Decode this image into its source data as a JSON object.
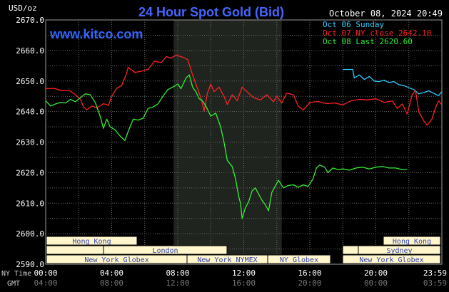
{
  "header": {
    "title": "24 Hour Spot Gold (Bid)",
    "date": "October 08, 2024 20:49",
    "brand": "www.kitco.com",
    "unit": "USD/oz"
  },
  "legend": [
    {
      "label": "Oct 06 Sunday",
      "color": "#33CCFF"
    },
    {
      "label": "Oct 07 NY close 2642.10",
      "color": "#FF2222"
    },
    {
      "label": "Oct 08 Last 2620.60",
      "color": "#33EE33"
    }
  ],
  "axis": {
    "x_row1_label": "NY Time",
    "x_row2_label": "GMT",
    "x_ticks_ny": [
      "00:00",
      "04:00",
      "08:00",
      "12:00",
      "16:00",
      "20:00",
      "23:59"
    ],
    "x_ticks_gmt": [
      "04:00",
      "08:00",
      "12:00",
      "16:00",
      "20:00",
      "00:00",
      "03:59"
    ],
    "y_ticks": [
      "2670.0",
      "2660.0",
      "2650.0",
      "2640.0",
      "2630.0",
      "2620.0",
      "2610.0",
      "2600.0",
      "2590.0"
    ]
  },
  "sessions": {
    "row1": [
      "Hong Kong",
      "Hong Kong"
    ],
    "row2": [
      "London",
      "Sydney"
    ],
    "row3": [
      "New York Globex",
      "New York NYMEX",
      "NY Globex",
      "New York Globex"
    ]
  },
  "chart_data": {
    "type": "line",
    "title": "24 Hour Spot Gold (Bid)",
    "ylabel": "USD/oz",
    "ylim": [
      2590,
      2670
    ],
    "xlim_hours": [
      0,
      24
    ],
    "grid": true,
    "colors": {
      "oct06": "#33CCFF",
      "oct07": "#FF2222",
      "oct08": "#33EE33"
    },
    "shaded_range_hours": [
      7.75,
      14.3
    ],
    "series": [
      {
        "name": "Oct 06 Sunday",
        "points": [
          [
            18.0,
            2653.8
          ],
          [
            18.6,
            2653.8
          ],
          [
            18.7,
            2651.0
          ],
          [
            19.0,
            2652.0
          ],
          [
            19.3,
            2650.5
          ],
          [
            19.6,
            2651.5
          ],
          [
            19.9,
            2650.0
          ],
          [
            20.2,
            2649.8
          ],
          [
            20.5,
            2650.3
          ],
          [
            20.8,
            2649.5
          ],
          [
            21.1,
            2649.8
          ],
          [
            21.4,
            2648.8
          ],
          [
            21.7,
            2648.5
          ],
          [
            22.0,
            2647.8
          ],
          [
            22.3,
            2647.2
          ],
          [
            22.6,
            2645.8
          ],
          [
            22.9,
            2646.2
          ],
          [
            23.2,
            2646.8
          ],
          [
            23.5,
            2646.0
          ],
          [
            23.8,
            2645.2
          ],
          [
            23.99,
            2646.5
          ]
        ]
      },
      {
        "name": "Oct 07 NY close 2642.10",
        "points": [
          [
            0.0,
            2647.5
          ],
          [
            0.5,
            2647.6
          ],
          [
            1.0,
            2646.8
          ],
          [
            1.4,
            2647.0
          ],
          [
            1.8,
            2645.5
          ],
          [
            2.1,
            2644.0
          ],
          [
            2.3,
            2641.5
          ],
          [
            2.5,
            2640.6
          ],
          [
            2.8,
            2641.8
          ],
          [
            3.1,
            2641.2
          ],
          [
            3.5,
            2642.6
          ],
          [
            3.8,
            2642.0
          ],
          [
            4.0,
            2645.0
          ],
          [
            4.3,
            2647.6
          ],
          [
            4.6,
            2648.5
          ],
          [
            4.9,
            2652.5
          ],
          [
            5.0,
            2654.5
          ],
          [
            5.4,
            2652.8
          ],
          [
            5.8,
            2653.2
          ],
          [
            6.2,
            2653.8
          ],
          [
            6.6,
            2656.5
          ],
          [
            7.0,
            2656.0
          ],
          [
            7.3,
            2658.0
          ],
          [
            7.6,
            2657.5
          ],
          [
            7.9,
            2658.5
          ],
          [
            8.3,
            2657.8
          ],
          [
            8.6,
            2657.0
          ],
          [
            8.9,
            2652.0
          ],
          [
            9.2,
            2647.5
          ],
          [
            9.4,
            2644.5
          ],
          [
            9.6,
            2640.2
          ],
          [
            9.8,
            2646.0
          ],
          [
            10.0,
            2649.0
          ],
          [
            10.2,
            2646.5
          ],
          [
            10.5,
            2648.0
          ],
          [
            10.8,
            2645.0
          ],
          [
            11.0,
            2642.3
          ],
          [
            11.3,
            2645.5
          ],
          [
            11.6,
            2643.5
          ],
          [
            11.9,
            2648.0
          ],
          [
            12.2,
            2646.5
          ],
          [
            12.6,
            2644.5
          ],
          [
            13.0,
            2643.8
          ],
          [
            13.4,
            2645.5
          ],
          [
            13.8,
            2643.2
          ],
          [
            14.0,
            2645.0
          ],
          [
            14.3,
            2642.8
          ],
          [
            14.6,
            2646.0
          ],
          [
            15.0,
            2645.5
          ],
          [
            15.3,
            2641.8
          ],
          [
            15.6,
            2640.5
          ],
          [
            16.0,
            2643.0
          ],
          [
            16.5,
            2643.3
          ],
          [
            17.0,
            2642.6
          ],
          [
            17.5,
            2642.8
          ],
          [
            18.0,
            2642.2
          ],
          [
            18.5,
            2643.5
          ],
          [
            19.0,
            2644.0
          ],
          [
            19.5,
            2643.8
          ],
          [
            20.0,
            2644.2
          ],
          [
            20.5,
            2643.0
          ],
          [
            21.0,
            2643.5
          ],
          [
            21.3,
            2641.0
          ],
          [
            21.6,
            2642.5
          ],
          [
            21.9,
            2639.2
          ],
          [
            22.2,
            2645.5
          ],
          [
            22.4,
            2647.0
          ],
          [
            22.6,
            2640.0
          ],
          [
            22.9,
            2637.0
          ],
          [
            23.1,
            2635.5
          ],
          [
            23.4,
            2637.5
          ],
          [
            23.6,
            2641.0
          ],
          [
            23.8,
            2643.5
          ],
          [
            23.99,
            2642.3
          ]
        ]
      },
      {
        "name": "Oct 08 Last 2620.60",
        "points": [
          [
            0.0,
            2643.5
          ],
          [
            0.3,
            2641.8
          ],
          [
            0.6,
            2642.5
          ],
          [
            0.9,
            2643.0
          ],
          [
            1.2,
            2642.8
          ],
          [
            1.5,
            2644.0
          ],
          [
            1.8,
            2643.2
          ],
          [
            2.1,
            2644.5
          ],
          [
            2.4,
            2645.8
          ],
          [
            2.7,
            2645.5
          ],
          [
            3.0,
            2643.0
          ],
          [
            3.3,
            2638.5
          ],
          [
            3.5,
            2634.5
          ],
          [
            3.7,
            2637.5
          ],
          [
            3.9,
            2635.0
          ],
          [
            4.2,
            2634.0
          ],
          [
            4.5,
            2632.0
          ],
          [
            4.8,
            2630.5
          ],
          [
            5.0,
            2633.5
          ],
          [
            5.3,
            2637.5
          ],
          [
            5.6,
            2637.2
          ],
          [
            5.9,
            2637.8
          ],
          [
            6.2,
            2641.0
          ],
          [
            6.5,
            2641.5
          ],
          [
            6.8,
            2642.5
          ],
          [
            7.1,
            2645.0
          ],
          [
            7.4,
            2647.2
          ],
          [
            7.7,
            2648.0
          ],
          [
            8.0,
            2649.0
          ],
          [
            8.2,
            2647.5
          ],
          [
            8.5,
            2651.0
          ],
          [
            8.7,
            2652.0
          ],
          [
            8.9,
            2648.0
          ],
          [
            9.1,
            2646.5
          ],
          [
            9.3,
            2644.2
          ],
          [
            9.5,
            2643.5
          ],
          [
            9.7,
            2641.8
          ],
          [
            10.0,
            2638.5
          ],
          [
            10.3,
            2639.5
          ],
          [
            10.6,
            2635.0
          ],
          [
            10.8,
            2630.0
          ],
          [
            11.0,
            2624.0
          ],
          [
            11.3,
            2622.0
          ],
          [
            11.5,
            2618.0
          ],
          [
            11.7,
            2612.0
          ],
          [
            11.8,
            2610.0
          ],
          [
            11.9,
            2605.0
          ],
          [
            12.1,
            2608.5
          ],
          [
            12.3,
            2610.5
          ],
          [
            12.5,
            2614.0
          ],
          [
            12.7,
            2615.0
          ],
          [
            12.9,
            2613.0
          ],
          [
            13.1,
            2611.0
          ],
          [
            13.3,
            2609.5
          ],
          [
            13.5,
            2607.5
          ],
          [
            13.7,
            2613.5
          ],
          [
            13.9,
            2615.5
          ],
          [
            14.1,
            2617.5
          ],
          [
            14.4,
            2615.0
          ],
          [
            14.7,
            2615.8
          ],
          [
            15.0,
            2616.0
          ],
          [
            15.3,
            2615.2
          ],
          [
            15.6,
            2616.0
          ],
          [
            15.9,
            2615.5
          ],
          [
            16.2,
            2618.0
          ],
          [
            16.4,
            2621.5
          ],
          [
            16.6,
            2622.5
          ],
          [
            16.9,
            2621.8
          ],
          [
            17.1,
            2620.0
          ],
          [
            17.4,
            2621.5
          ],
          [
            17.7,
            2621.0
          ],
          [
            18.0,
            2621.2
          ],
          [
            18.4,
            2620.8
          ],
          [
            18.8,
            2621.5
          ],
          [
            19.2,
            2621.8
          ],
          [
            19.6,
            2621.2
          ],
          [
            20.0,
            2621.8
          ],
          [
            20.4,
            2622.0
          ],
          [
            20.8,
            2621.5
          ],
          [
            21.2,
            2621.5
          ],
          [
            21.6,
            2621.0
          ],
          [
            21.9,
            2621.0
          ]
        ]
      }
    ]
  }
}
